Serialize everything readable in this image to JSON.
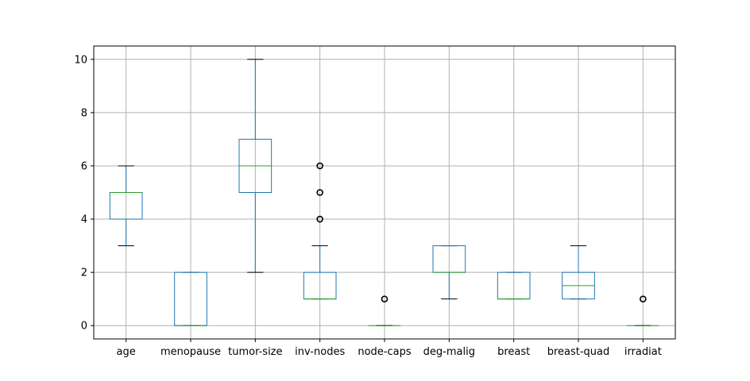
{
  "chart_data": {
    "type": "box",
    "categories": [
      "age",
      "menopause",
      "tumor-size",
      "inv-nodes",
      "node-caps",
      "deg-malig",
      "breast",
      "breast-quad",
      "irradiat"
    ],
    "boxes": [
      {
        "label": "age",
        "whisker_low": 3,
        "q1": 4,
        "median": 5,
        "q3": 5,
        "whisker_high": 6,
        "outliers": []
      },
      {
        "label": "menopause",
        "whisker_low": 0,
        "q1": 0,
        "median": 0,
        "q3": 2,
        "whisker_high": 2,
        "outliers": []
      },
      {
        "label": "tumor-size",
        "whisker_low": 2,
        "q1": 5,
        "median": 6,
        "q3": 7,
        "whisker_high": 10,
        "outliers": []
      },
      {
        "label": "inv-nodes",
        "whisker_low": 1,
        "q1": 1,
        "median": 1,
        "q3": 2,
        "whisker_high": 3,
        "outliers": [
          4,
          5,
          6
        ]
      },
      {
        "label": "node-caps",
        "whisker_low": 0,
        "q1": 0,
        "median": 0,
        "q3": 0,
        "whisker_high": 0,
        "outliers": [
          1
        ]
      },
      {
        "label": "deg-malig",
        "whisker_low": 1,
        "q1": 2,
        "median": 2,
        "q3": 3,
        "whisker_high": 3,
        "outliers": []
      },
      {
        "label": "breast",
        "whisker_low": 1,
        "q1": 1,
        "median": 1,
        "q3": 2,
        "whisker_high": 2,
        "outliers": []
      },
      {
        "label": "breast-quad",
        "whisker_low": 1,
        "q1": 1,
        "median": 1.5,
        "q3": 2,
        "whisker_high": 3,
        "outliers": []
      },
      {
        "label": "irradiat",
        "whisker_low": 0,
        "q1": 0,
        "median": 0,
        "q3": 0,
        "whisker_high": 0,
        "outliers": [
          1
        ]
      }
    ],
    "ylim": [
      -0.5,
      10.5
    ],
    "yticks": [
      0,
      2,
      4,
      6,
      8,
      10
    ],
    "grid": true,
    "colors": {
      "box": "#1f77b4",
      "median": "#2ca02c",
      "whisker_cap": "#000000",
      "outlier": "#000000",
      "grid": "#b0b0b0"
    }
  }
}
